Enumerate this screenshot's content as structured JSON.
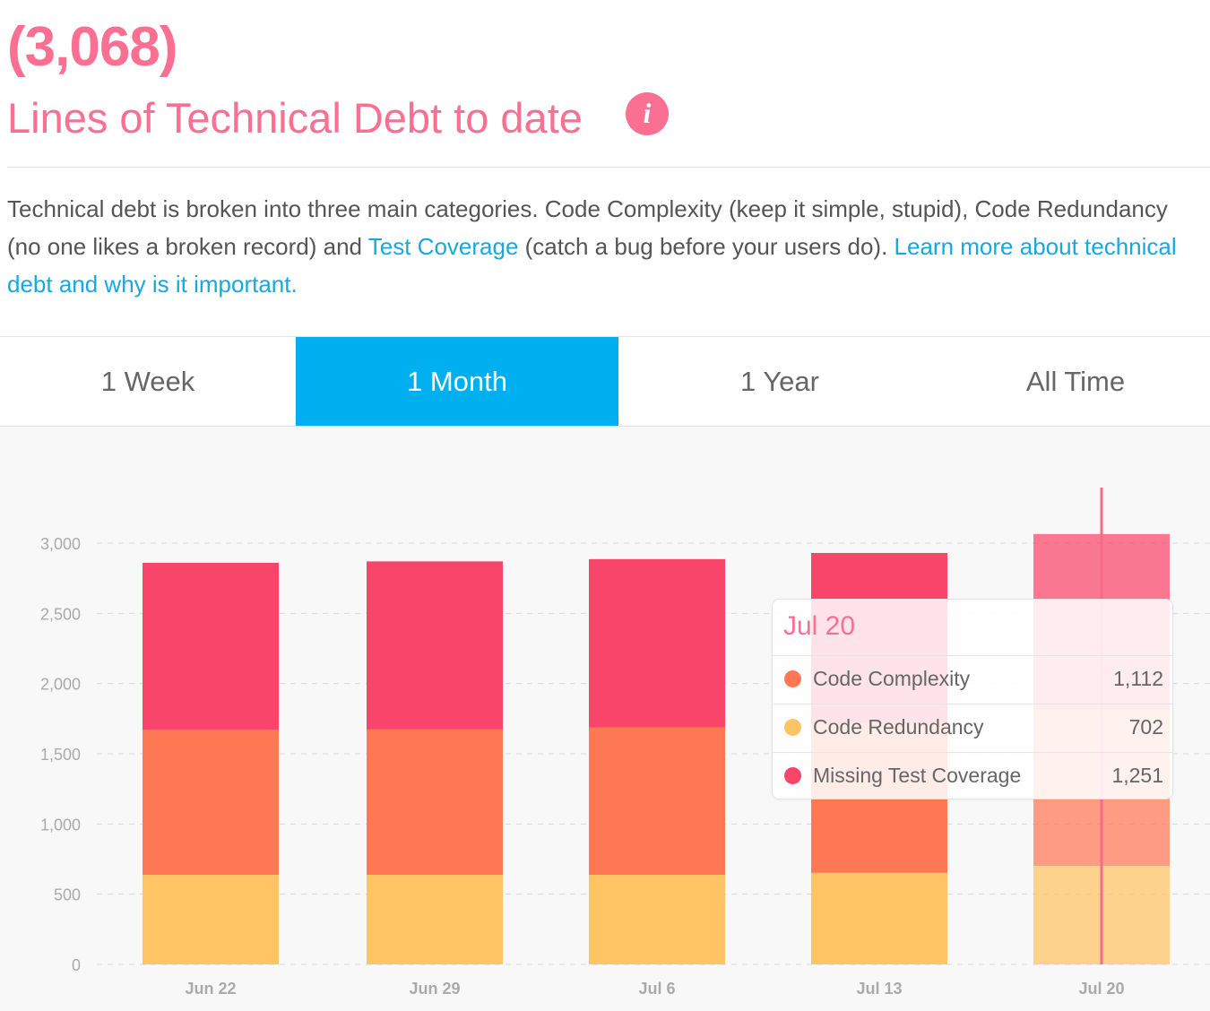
{
  "header": {
    "big_number": "(3,068)",
    "title": "Lines of Technical Debt to date",
    "info_glyph": "i",
    "icon": "info-icon"
  },
  "description": {
    "part1": "Technical debt is broken into three main categories. Code Complexity (keep it simple, stupid), Code Redundancy (no one likes a broken record) and ",
    "link1": "Test Coverage",
    "part2": " (catch a bug before your users do). ",
    "link2": "Learn more about technical debt and why is it important."
  },
  "tabs": [
    {
      "label": "1 Week",
      "active": false
    },
    {
      "label": "1 Month",
      "active": true
    },
    {
      "label": "1 Year",
      "active": false
    },
    {
      "label": "All Time",
      "active": false
    }
  ],
  "colors": {
    "pink": "#fb6f93",
    "link": "#16a8e0",
    "text": "#555555",
    "tab_active": "#00aff0",
    "chart_bg": "#f8f8f8",
    "code_complexity": "#ff7854",
    "code_redundancy": "#ffc463",
    "missing_test_coverage": "#f9456a",
    "highlight_line": "#f56b8a"
  },
  "chart_data": {
    "type": "bar",
    "stacked": true,
    "categories": [
      "Jun 22",
      "Jun 29",
      "Jul 6",
      "Jul 13",
      "Jul 20"
    ],
    "series": [
      {
        "name": "Code Redundancy",
        "values": [
          638,
          638,
          638,
          652,
          702
        ]
      },
      {
        "name": "Code Complexity",
        "values": [
          1032,
          1035,
          1048,
          1060,
          1112
        ]
      },
      {
        "name": "Missing Test Coverage",
        "values": [
          1190,
          1197,
          1200,
          1218,
          1251
        ]
      }
    ],
    "ylim": [
      0,
      3000
    ],
    "yticks": [
      0,
      500,
      1000,
      1500,
      2000,
      2500,
      3000
    ],
    "ytick_labels": [
      "0",
      "500",
      "1,000",
      "1,500",
      "2,000",
      "2,500",
      "3,000"
    ],
    "grid": true,
    "highlighted_category": "Jul 20"
  },
  "tooltip": {
    "title": "Jul 20",
    "rows": [
      {
        "label": "Code Complexity",
        "value": "1,112"
      },
      {
        "label": "Code Redundancy",
        "value": "702"
      },
      {
        "label": "Missing Test Coverage",
        "value": "1,251"
      }
    ]
  }
}
